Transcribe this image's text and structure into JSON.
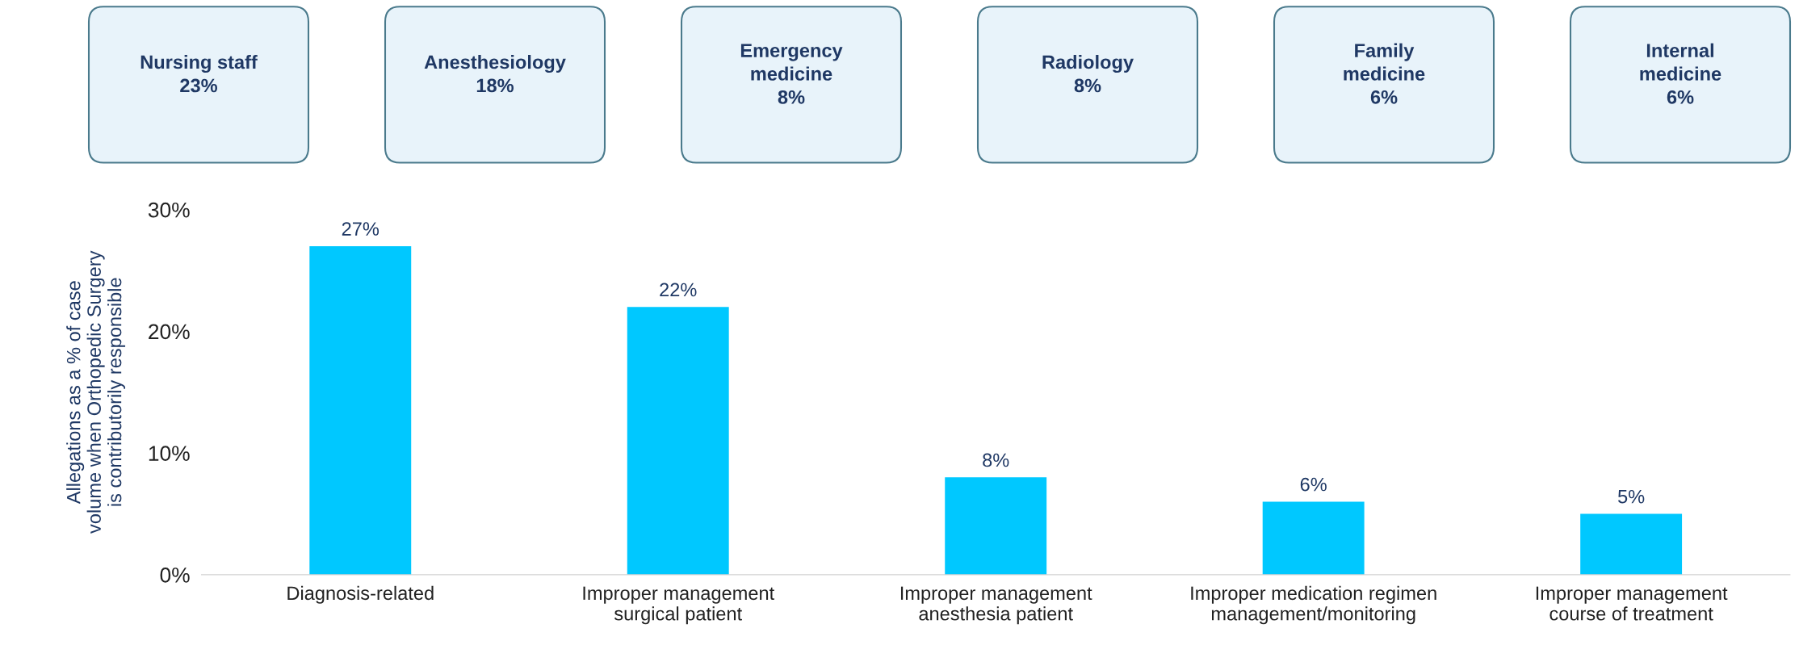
{
  "chart_data": [
    {
      "type": "other",
      "color": "#e8f3fa",
      "annotations": [
        "Nursing staff\n23%",
        "Anesthesiology\n18%",
        "Emergency\nmedicine\n8%",
        "Radiology\n8%",
        "Family\nmedicine\n6%",
        "Internal\nmedicine\n6%"
      ]
    },
    {
      "type": "bar",
      "categories": [
        "Diagnosis-related",
        "Improper management\nsurgical patient",
        "Improper management\nanesthesia patient",
        "Improper medication regimen\nmanagement/monitoring",
        "Improper management\ncourse of treatment"
      ],
      "values": [
        27,
        22,
        8,
        6,
        5
      ],
      "value_labels": [
        "27%",
        "22%",
        "8%",
        "6%",
        "5%"
      ],
      "color": "#00c8ff",
      "ylabel": "Allegations as a % of case\nvolume when Orthopedic Surgery\nis contributorily responsible",
      "ylim": [
        0,
        30
      ],
      "yticks": [
        {
          "value": 0,
          "label": "0%"
        },
        {
          "value": 10,
          "label": "10%"
        },
        {
          "value": 20,
          "label": "20%"
        },
        {
          "value": 30,
          "label": "30%"
        }
      ],
      "grid": false,
      "legend": false
    }
  ]
}
